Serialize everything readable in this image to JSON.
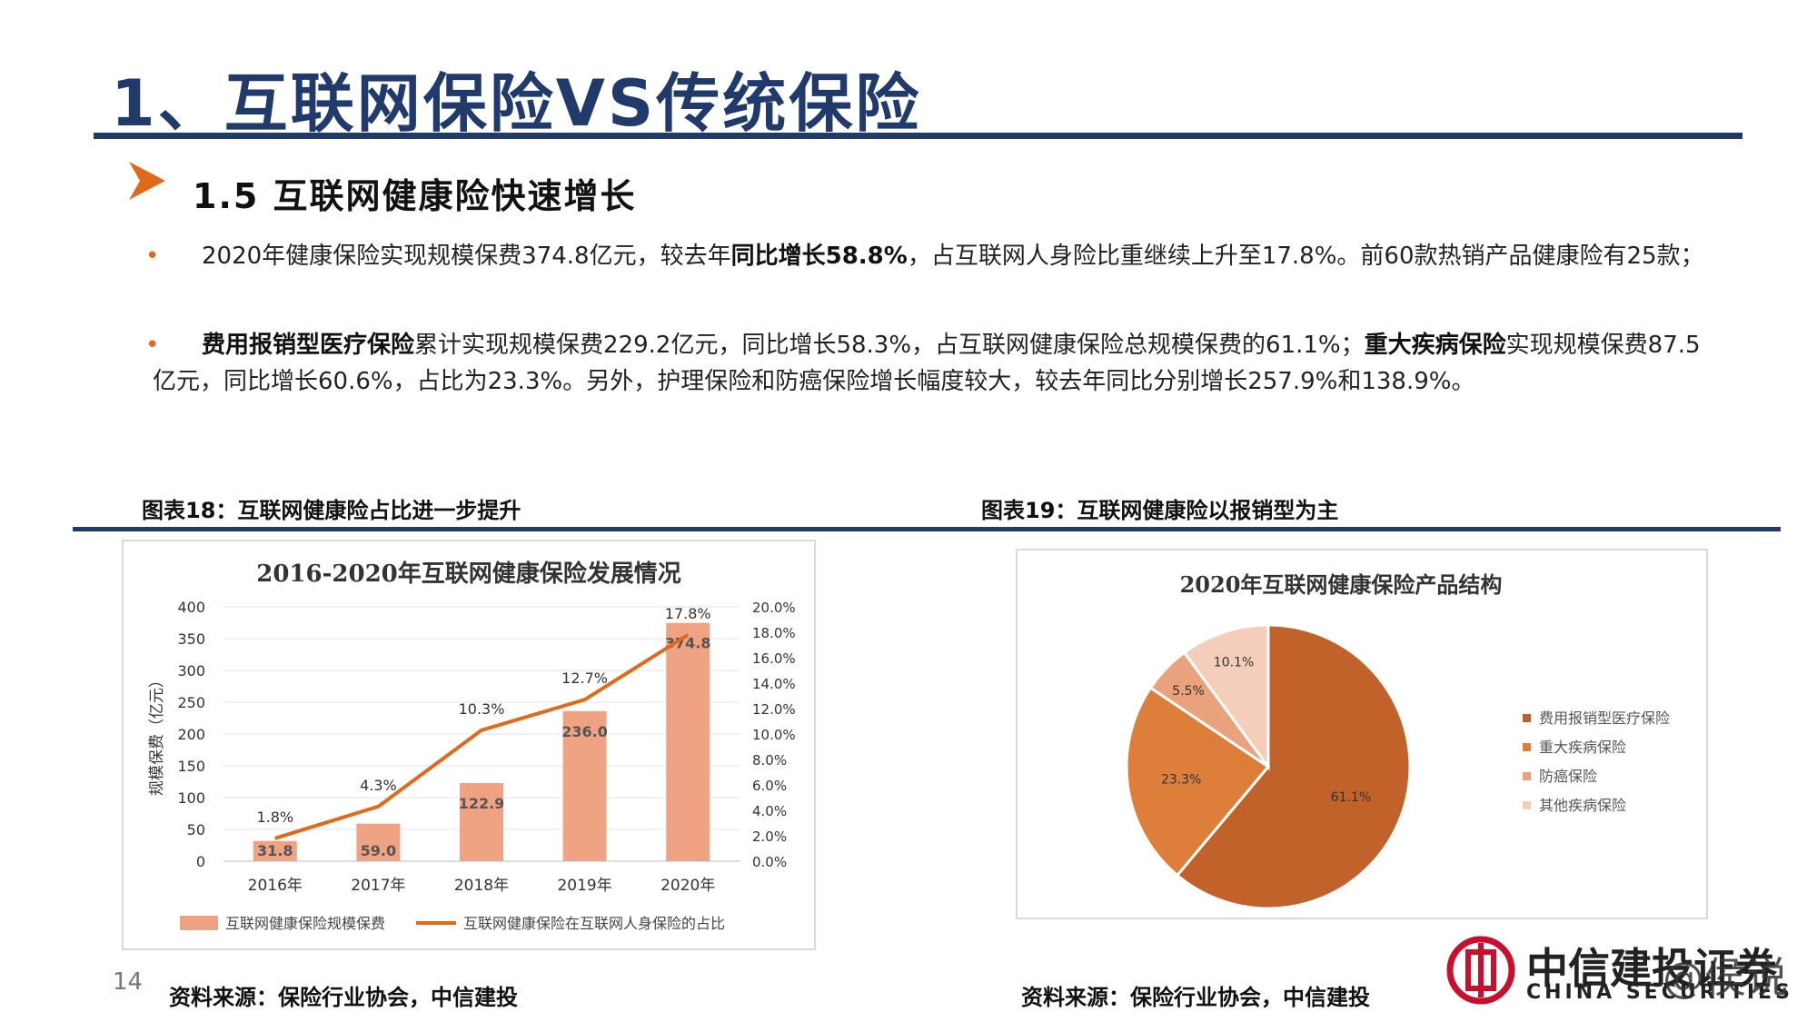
{
  "header": {
    "title": "1、互联网保险VS传统保险"
  },
  "section": {
    "title": "1.5 互联网健康险快速增长"
  },
  "paragraphs": {
    "p1": {
      "a": "2020年健康保险实现规模保费374.8亿元，较去年",
      "b": "同比增长58.8%",
      "c": "，占互联网人身险比重继续上升至17.8%。前60款热销产品健康险有25款；"
    },
    "p2": {
      "a": "费用报销型医疗保险",
      "b": "累计实现规模保费229.2亿元，同比增长58.3%，占互联网健康保险总规模保费的61.1%；",
      "c": "重大疾病保险",
      "d": "实现规模保费87.5亿元，同比增长60.6%，占比为23.3%。另外，护理保险和防癌保险增长幅度较大，较去年同比分别增长257.9%和138.9%。"
    }
  },
  "figures": {
    "left_caption": "图表18：互联网健康险占比进一步提升",
    "right_caption": "图表19：互联网健康险以报销型为主",
    "left_source": "资料来源：保险行业协会，中信建投",
    "right_source": "资料来源：保险行业协会，中信建投"
  },
  "footer": {
    "page_number": "14",
    "logo_text": "中信建投证券",
    "logo_sub": "CHINA SECURITIES",
    "watermark": "@侯说"
  },
  "colors": {
    "brand_blue": "#1f3a6b",
    "bar": "#f0a383",
    "line": "#e06a1a"
  },
  "chart_data": [
    {
      "type": "bar",
      "title": "2016-2020年互联网健康保险发展情况",
      "ylabel": "规模保费（亿元）",
      "categories": [
        "2016年",
        "2017年",
        "2018年",
        "2019年",
        "2020年"
      ],
      "ylim": [
        0,
        400
      ],
      "yticks": [
        "400",
        "350",
        "300",
        "250",
        "200",
        "150",
        "100",
        "50",
        "0"
      ],
      "y2lim": [
        0,
        20
      ],
      "y2ticks": [
        "20.0%",
        "18.0%",
        "16.0%",
        "14.0%",
        "12.0%",
        "10.0%",
        "8.0%",
        "6.0%",
        "4.0%",
        "2.0%",
        "0.0%"
      ],
      "series": [
        {
          "name": "互联网健康保险规模保费",
          "kind": "bar",
          "values": [
            31.8,
            59.0,
            122.9,
            236.0,
            374.8
          ],
          "labels": [
            "31.8",
            "59.0",
            "122.9",
            "236.0",
            "374.8"
          ]
        },
        {
          "name": "互联网健康保险在互联网人身保险的占比",
          "kind": "line",
          "axis": "right",
          "values": [
            1.8,
            4.3,
            10.3,
            12.7,
            17.8
          ],
          "labels": [
            "1.8%",
            "4.3%",
            "10.3%",
            "12.7%",
            "17.8%"
          ]
        }
      ],
      "grid": true,
      "legend": "bottom"
    },
    {
      "type": "pie",
      "title": "2020年互联网健康保险产品结构",
      "slices": [
        {
          "name": "费用报销型医疗保险",
          "value": 61.1,
          "label": "61.1%",
          "color": "#c0622a"
        },
        {
          "name": "重大疾病保险",
          "value": 23.3,
          "label": "23.3%",
          "color": "#dd7e3a"
        },
        {
          "name": "防癌保险",
          "value": 5.5,
          "label": "5.5%",
          "color": "#e9a27c"
        },
        {
          "name": "其他疾病保险",
          "value": 10.1,
          "label": "10.1%",
          "color": "#f4cdbb"
        }
      ],
      "legend": "right"
    }
  ]
}
